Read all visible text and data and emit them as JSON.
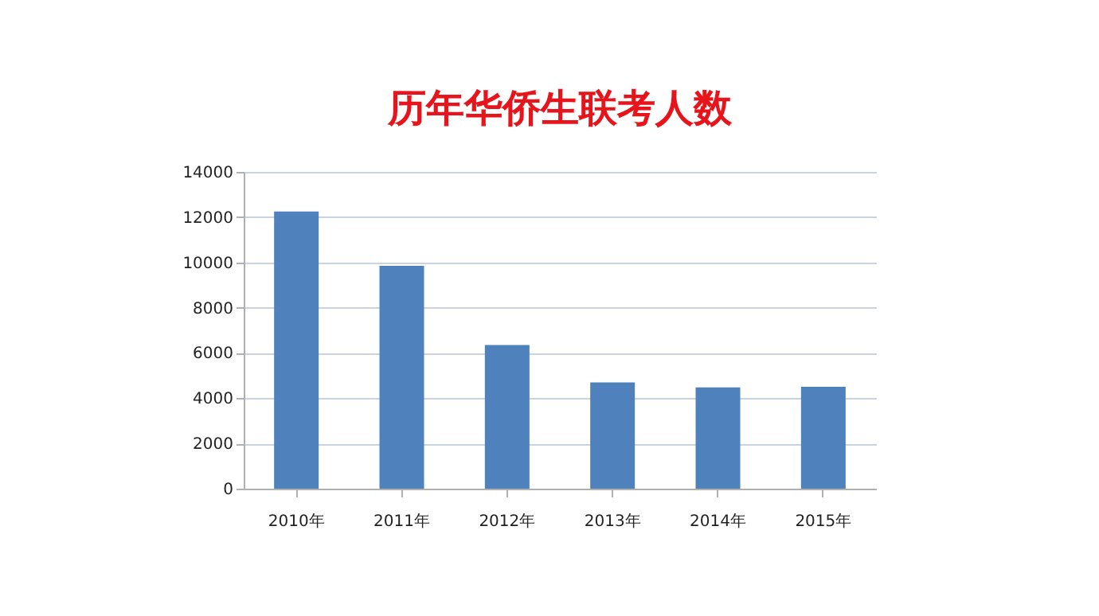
{
  "chart_data": {
    "type": "bar",
    "title": "历年华侨生联考人数",
    "categories": [
      "2010年",
      "2011年",
      "2012年",
      "2013年",
      "2014年",
      "2015年"
    ],
    "values": [
      12250,
      9850,
      6350,
      4700,
      4480,
      4500
    ],
    "color": "#4f81bd",
    "ylim": [
      0,
      14000
    ],
    "yticks": [
      0,
      2000,
      4000,
      6000,
      8000,
      10000,
      12000,
      14000
    ],
    "grid": "y"
  }
}
